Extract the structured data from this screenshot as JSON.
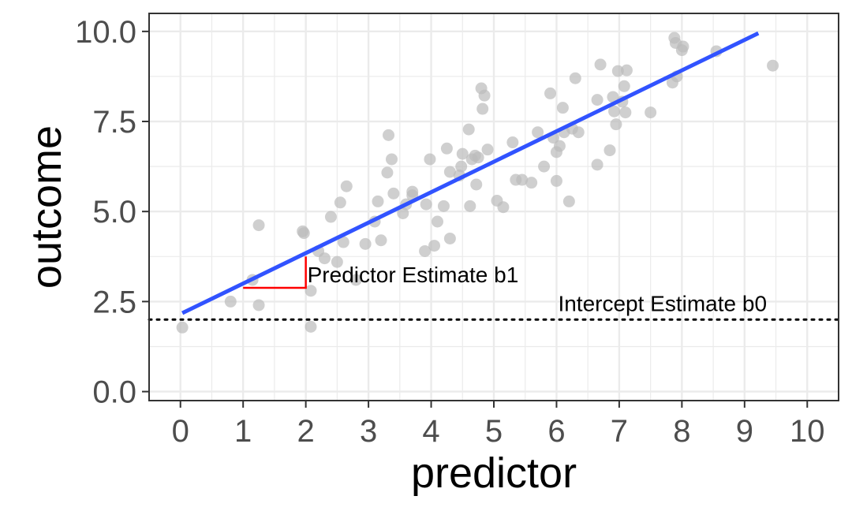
{
  "chart_data": {
    "type": "scatter",
    "xlabel": "predictor",
    "ylabel": "outcome",
    "xlim": [
      -0.5,
      10.5
    ],
    "ylim": [
      -0.25,
      10.5
    ],
    "x_ticks": [
      0,
      1,
      2,
      3,
      4,
      5,
      6,
      7,
      8,
      9,
      10
    ],
    "x_tick_labels": [
      "0",
      "1",
      "2",
      "3",
      "4",
      "5",
      "6",
      "7",
      "8",
      "9",
      "10"
    ],
    "y_ticks": [
      0,
      2.5,
      5,
      7.5,
      10
    ],
    "y_tick_labels": [
      "0.0",
      "2.5",
      "5.0",
      "7.5",
      "10.0"
    ],
    "x_minor_ticks": [
      0.5,
      1.5,
      2.5,
      3.5,
      4.5,
      5.5,
      6.5,
      7.5,
      8.5,
      9.5
    ],
    "y_minor_ticks": [
      1.25,
      3.75,
      6.25,
      8.75
    ],
    "grid": true,
    "points": [
      [
        0.03,
        1.78
      ],
      [
        0.8,
        2.5
      ],
      [
        1.15,
        3.1
      ],
      [
        1.25,
        4.62
      ],
      [
        1.25,
        2.4
      ],
      [
        1.95,
        4.45
      ],
      [
        1.97,
        4.4
      ],
      [
        2.08,
        2.8
      ],
      [
        2.08,
        1.8
      ],
      [
        2.2,
        3.9
      ],
      [
        2.3,
        3.7
      ],
      [
        2.4,
        4.85
      ],
      [
        2.5,
        3.6
      ],
      [
        2.55,
        5.25
      ],
      [
        2.6,
        4.15
      ],
      [
        2.65,
        5.7
      ],
      [
        2.8,
        3.1
      ],
      [
        2.95,
        4.1
      ],
      [
        3.1,
        4.72
      ],
      [
        3.15,
        5.28
      ],
      [
        3.2,
        4.2
      ],
      [
        3.3,
        6.08
      ],
      [
        3.32,
        7.12
      ],
      [
        3.37,
        6.45
      ],
      [
        3.4,
        5.5
      ],
      [
        3.55,
        4.95
      ],
      [
        3.6,
        5.2
      ],
      [
        3.7,
        5.45
      ],
      [
        3.7,
        5.55
      ],
      [
        3.9,
        3.9
      ],
      [
        3.92,
        5.2
      ],
      [
        3.98,
        6.45
      ],
      [
        4.05,
        4.05
      ],
      [
        4.1,
        4.72
      ],
      [
        4.2,
        5.15
      ],
      [
        4.25,
        6.75
      ],
      [
        4.3,
        6.1
      ],
      [
        4.3,
        4.25
      ],
      [
        4.45,
        6.0
      ],
      [
        4.48,
        6.25
      ],
      [
        4.5,
        6.6
      ],
      [
        4.6,
        7.28
      ],
      [
        4.62,
        5.15
      ],
      [
        4.65,
        6.45
      ],
      [
        4.7,
        6.55
      ],
      [
        4.72,
        5.75
      ],
      [
        4.75,
        6.5
      ],
      [
        4.8,
        8.42
      ],
      [
        4.82,
        7.85
      ],
      [
        4.85,
        8.22
      ],
      [
        4.9,
        6.72
      ],
      [
        5.05,
        5.3
      ],
      [
        5.15,
        5.12
      ],
      [
        5.3,
        6.92
      ],
      [
        5.35,
        5.88
      ],
      [
        5.45,
        5.88
      ],
      [
        5.6,
        5.8
      ],
      [
        5.7,
        7.2
      ],
      [
        5.8,
        6.25
      ],
      [
        5.9,
        8.28
      ],
      [
        5.95,
        7.05
      ],
      [
        6.0,
        5.85
      ],
      [
        6.0,
        6.65
      ],
      [
        6.05,
        6.82
      ],
      [
        6.1,
        7.88
      ],
      [
        6.12,
        7.2
      ],
      [
        6.2,
        5.28
      ],
      [
        6.25,
        7.3
      ],
      [
        6.3,
        8.7
      ],
      [
        6.35,
        7.2
      ],
      [
        6.65,
        6.3
      ],
      [
        6.65,
        8.1
      ],
      [
        6.7,
        9.08
      ],
      [
        6.85,
        6.7
      ],
      [
        6.9,
        8.18
      ],
      [
        6.92,
        7.78
      ],
      [
        6.95,
        7.42
      ],
      [
        6.98,
        8.9
      ],
      [
        7.05,
        8.05
      ],
      [
        7.08,
        8.48
      ],
      [
        7.1,
        7.75
      ],
      [
        7.12,
        8.92
      ],
      [
        7.5,
        7.75
      ],
      [
        7.85,
        8.58
      ],
      [
        7.88,
        9.82
      ],
      [
        7.9,
        9.68
      ],
      [
        7.92,
        8.75
      ],
      [
        8.0,
        9.48
      ],
      [
        8.02,
        9.58
      ],
      [
        8.55,
        9.45
      ],
      [
        9.45,
        9.05
      ]
    ],
    "regression_line": {
      "x": [
        0.03,
        9.22
      ],
      "y": [
        2.18,
        9.95
      ],
      "color": "#3153ff"
    },
    "intercept_line": {
      "y": 2.0,
      "style": "dotted",
      "color": "#000000"
    },
    "slope_triangle": {
      "x0": 1,
      "x1": 2,
      "y0": 2.88,
      "y1": 3.75,
      "color": "#ff0000"
    },
    "annotations": [
      {
        "text": "Predictor Estimate b1",
        "x": 2.0,
        "y": 3.25
      },
      {
        "text": "Intercept Estimate b0",
        "x": 6.0,
        "y": 2.45
      }
    ],
    "colors": {
      "points": "#bbbbbb",
      "grid": "#ebebeb",
      "panel_border": "#333333"
    }
  }
}
